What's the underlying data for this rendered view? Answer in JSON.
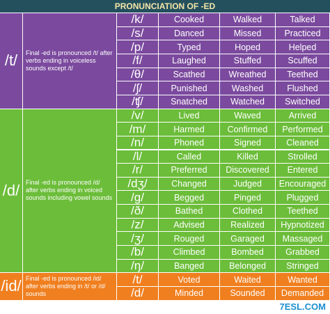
{
  "header": {
    "title": "PRONUNCIATION OF -ED"
  },
  "sections": [
    {
      "symbol": "/t/",
      "color": "#7b4a9e",
      "description": "Final -ed is pronounced /t/ after verbs ending in voiceless sounds except /t/",
      "rows": [
        [
          "/k/",
          "Cooked",
          "Walked",
          "Talked"
        ],
        [
          "/s/",
          "Danced",
          "Missed",
          "Practiced"
        ],
        [
          "/p/",
          "Typed",
          "Hoped",
          "Helped"
        ],
        [
          "/f/",
          "Laughed",
          "Stuffed",
          "Scuffed"
        ],
        [
          "/θ/",
          "Scathed",
          "Wreathed",
          "Teethed"
        ],
        [
          "/ʃ/",
          "Punished",
          "Washed",
          "Flushed"
        ],
        [
          "/ʧ/",
          "Snatched",
          "Watched",
          "Switched"
        ]
      ]
    },
    {
      "symbol": "/d/",
      "color": "#6cbd3a",
      "description": "Final -ed is pronounced /d/ after verbs ending in voiced sounds including vowel sounds",
      "rows": [
        [
          "/v/",
          "Lived",
          "Waved",
          "Arrived"
        ],
        [
          "/m/",
          "Harmed",
          "Confirmed",
          "Performed"
        ],
        [
          "/n/",
          "Phoned",
          "Signed",
          "Cleaned"
        ],
        [
          "/l/",
          "Called",
          "Killed",
          "Strolled"
        ],
        [
          "/r/",
          "Preferred",
          "Discovered",
          "Entered"
        ],
        [
          "/dʒ/",
          "Changed",
          "Judged",
          "Encouraged"
        ],
        [
          "/g/",
          "Begged",
          "Pinged",
          "Plugged"
        ],
        [
          "/ð/",
          "Bathed",
          "Clothed",
          "Teethed"
        ],
        [
          "/z/",
          "Advised",
          "Realized",
          "Hypnotized"
        ],
        [
          "/ʒ/",
          "Rouged",
          "Garaged",
          "Massaged"
        ],
        [
          "/b/",
          "Climbed",
          "Bombed",
          "Grabbed"
        ],
        [
          "/ŋ/",
          "Banged",
          "Belonged",
          "Stringed"
        ]
      ]
    },
    {
      "symbol": "/id/",
      "color": "#f07f1f",
      "description": "Final -ed is pronounced /id/ after verbs ending in /t/ or /d/ sounds",
      "rows": [
        [
          "/t/",
          "Voted",
          "Waited",
          "Wanted"
        ],
        [
          "/d/",
          "Minded",
          "Sounded",
          "Demanded"
        ]
      ]
    }
  ],
  "logo": "7ESL.COM"
}
